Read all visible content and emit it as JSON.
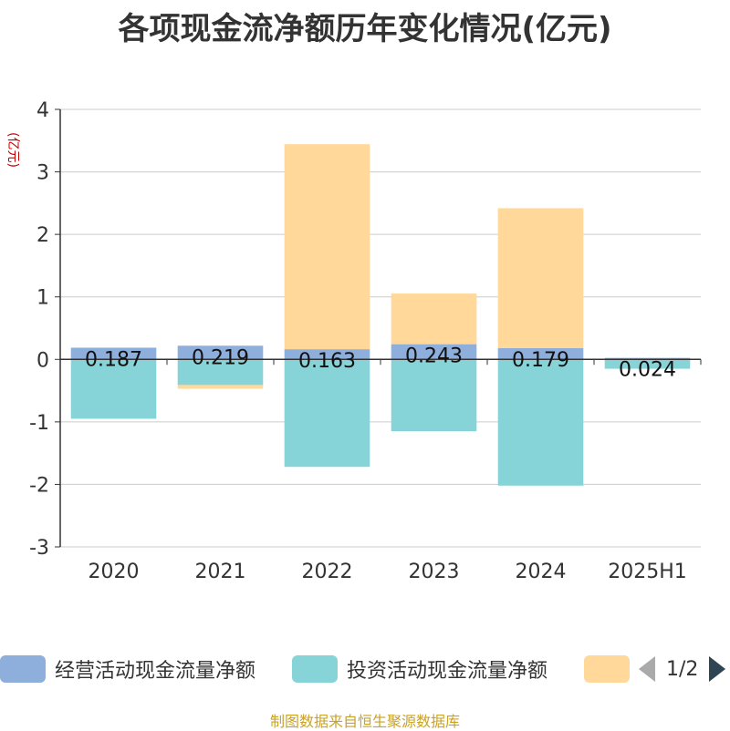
{
  "title": "各项现金流净额历年变化情况(亿元)",
  "y_unit": "(亿元)",
  "source": "制图数据来自恒生聚源数据库",
  "legend": {
    "items": [
      {
        "label": "经营活动现金流量净额",
        "color": "#8eaedc"
      },
      {
        "label": "投资活动现金流量净额",
        "color": "#86d4d8"
      },
      {
        "label": "",
        "color": "#ffd89a"
      }
    ],
    "page": "1/2"
  },
  "chart_data": {
    "type": "bar",
    "stacked": true,
    "categories": [
      "2020",
      "2021",
      "2022",
      "2023",
      "2024",
      "2025H1"
    ],
    "ylim": [
      -3,
      4
    ],
    "yticks": [
      4,
      3,
      2,
      1,
      0,
      -1,
      -2,
      -3
    ],
    "grid": true,
    "series": [
      {
        "name": "经营活动现金流量净额",
        "color": "#8eaedc",
        "values": [
          0.187,
          0.219,
          0.163,
          0.243,
          0.179,
          0.024
        ],
        "labels": [
          "0.187",
          "0.219",
          "0.163",
          "0.243",
          "0.179",
          "0.024"
        ]
      },
      {
        "name": "投资活动现金流量净额",
        "color": "#86d4d8",
        "values": [
          -0.95,
          -0.41,
          -1.72,
          -1.15,
          -2.02,
          -0.15
        ]
      },
      {
        "color": "#ffd89a",
        "values": [
          0.0,
          -0.06,
          3.28,
          0.81,
          2.24,
          0.0
        ]
      }
    ]
  }
}
